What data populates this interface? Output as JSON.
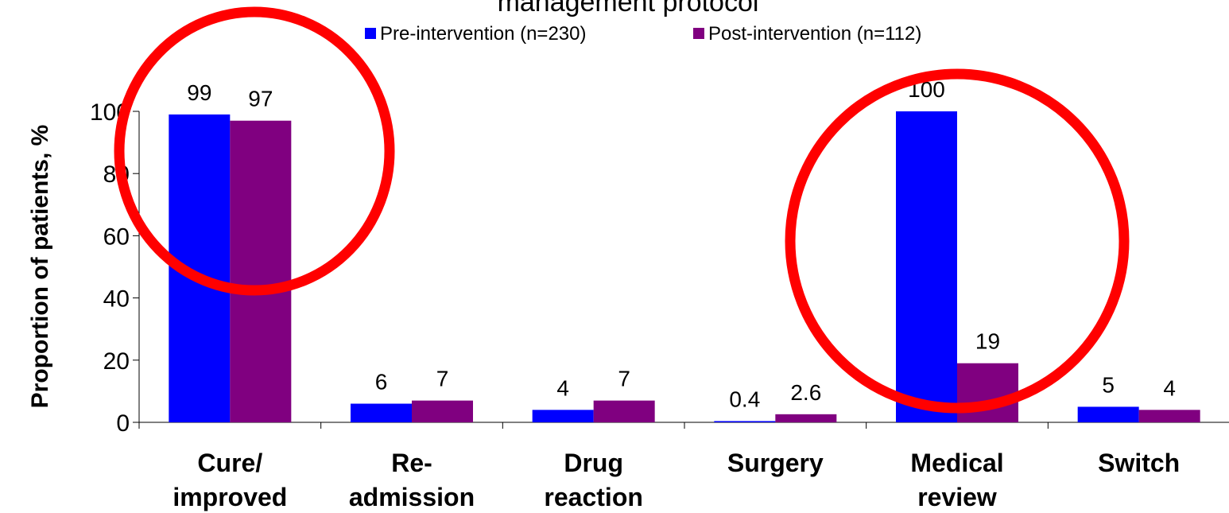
{
  "chart_data": {
    "type": "bar",
    "title": "management protocol",
    "xlabel": "",
    "ylabel": "Proportion of patients, %",
    "ylim": [
      0,
      100
    ],
    "yticks": [
      0,
      20,
      40,
      60,
      80,
      100
    ],
    "grid": false,
    "legend_position": "top",
    "categories": [
      [
        "Cure/",
        "improved"
      ],
      [
        "Re-",
        "admission"
      ],
      [
        "Drug",
        "reaction"
      ],
      [
        "Surgery"
      ],
      [
        "Medical",
        "review"
      ],
      [
        "Switch"
      ]
    ],
    "series": [
      {
        "name": "Pre-intervention (n=230)",
        "color": "#0000FF",
        "values": [
          99,
          6,
          4,
          0.4,
          100,
          5
        ],
        "labels": [
          "99",
          "6",
          "4",
          "0.4",
          "100",
          "5"
        ]
      },
      {
        "name": "Post-intervention (n=112)",
        "color": "#800080",
        "values": [
          97,
          7,
          7,
          2.6,
          19,
          4
        ],
        "labels": [
          "97",
          "7",
          "7",
          "2.6",
          "19",
          "4"
        ]
      }
    ],
    "annotation_color": "#FF0000",
    "annotations": [
      {
        "shape": "circle",
        "target_category_index": 0
      },
      {
        "shape": "circle",
        "target_category_index": 4
      }
    ]
  }
}
